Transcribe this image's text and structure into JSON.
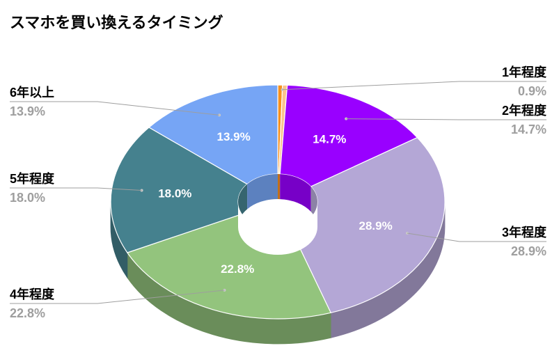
{
  "chart_data": {
    "type": "pie",
    "style": "3d-donut",
    "title": "スマホを買い換えるタイミング",
    "categories": [
      "1年程度",
      "2年程度",
      "3年程度",
      "4年程度",
      "5年程度",
      "6年以上"
    ],
    "values": [
      0.9,
      14.7,
      28.9,
      22.8,
      18.0,
      13.9
    ],
    "value_labels": [
      "0.9%",
      "14.7%",
      "28.9%",
      "22.8%",
      "18.0%",
      "13.9%"
    ],
    "colors": [
      "#f1c232",
      "#9900ff",
      "#b4a7d6",
      "#93c47d",
      "#45818e",
      "#76a5f5"
    ],
    "small_slice_colors": [
      "#f6901e",
      "#fbc38d"
    ],
    "legend": "none",
    "labels_placement": "outside-with-leader-lines"
  }
}
